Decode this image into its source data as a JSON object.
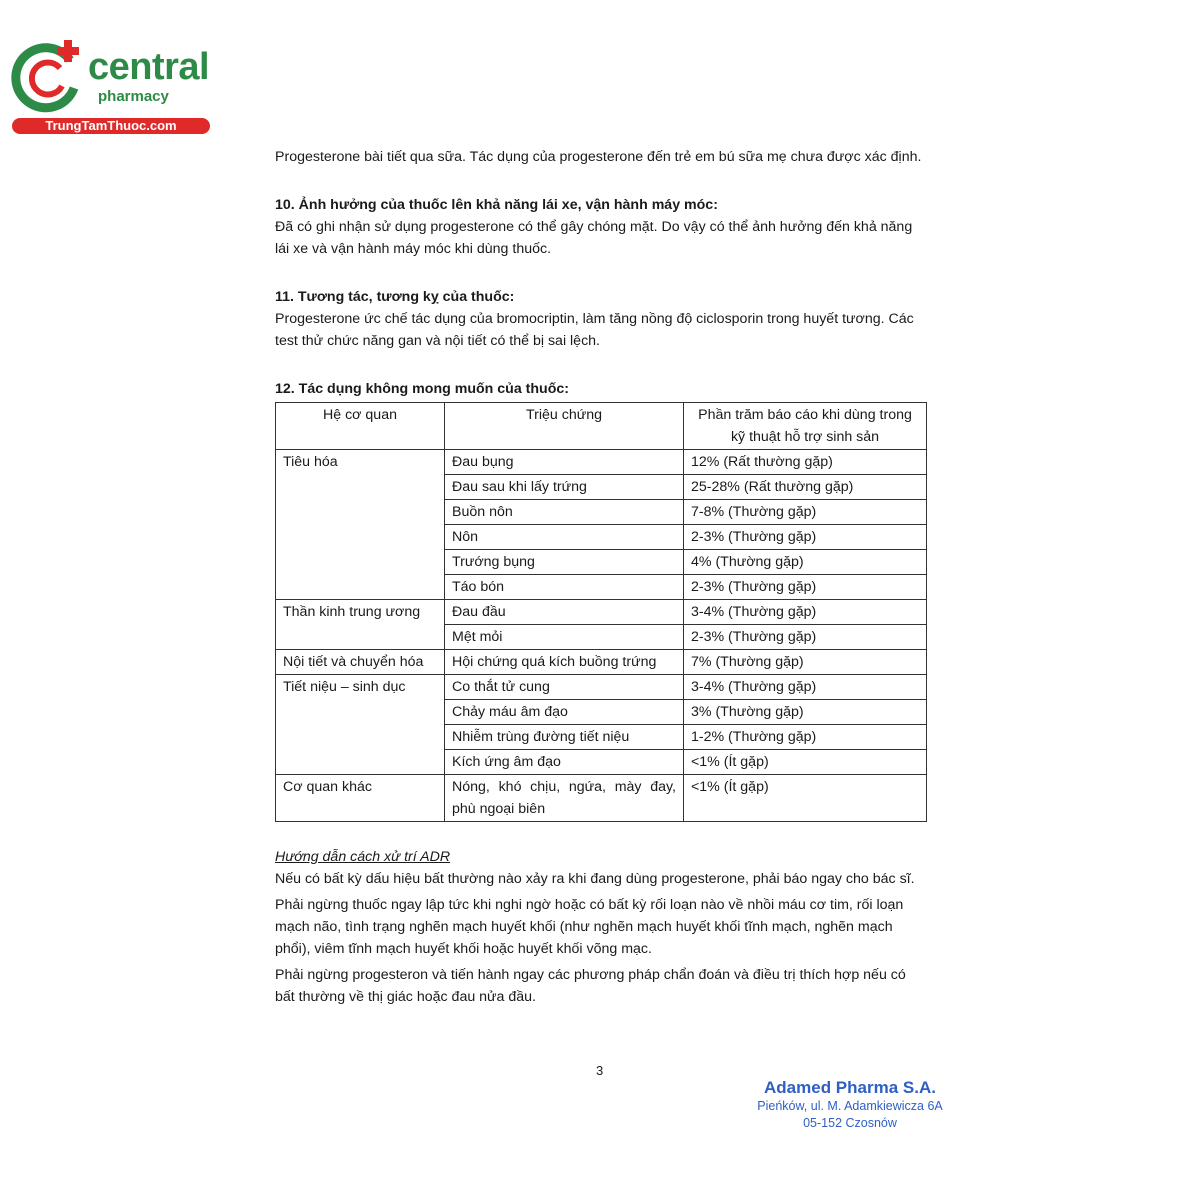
{
  "logo": {
    "brand": "central",
    "sub": "pharmacy",
    "site": "TrungTamThuoc.com",
    "colors": {
      "green": "#2e8b47",
      "red": "#e02a2a"
    }
  },
  "intro": "Progesterone bài tiết qua sữa. Tác dụng của progesterone đến trẻ em bú sữa mẹ chưa được xác định.",
  "s10": {
    "title": "10. Ảnh hưởng của thuốc lên khả năng lái xe, vận hành máy móc:",
    "body": "Đã có ghi nhận sử dụng progesterone có thể gây chóng mặt. Do vậy có thể ảnh hưởng đến khả năng lái xe và vận hành máy móc khi dùng thuốc."
  },
  "s11": {
    "title": "11. Tương tác, tương kỵ của thuốc:",
    "body": "Progesterone ức chế tác dụng của bromocriptin, làm tăng nồng độ ciclosporin trong huyết tương. Các test thử chức năng gan và nội tiết có thể bị sai lệch."
  },
  "s12": {
    "title": "12. Tác dụng không mong muốn của thuốc:",
    "headers": [
      "Hệ cơ quan",
      "Triệu chứng",
      "Phần trăm báo cáo khi dùng trong kỹ thuật hỗ trợ sinh sản"
    ],
    "groups": [
      {
        "organ": "Tiêu hóa",
        "rows": [
          [
            "Đau bụng",
            "12% (Rất thường gặp)"
          ],
          [
            "Đau sau khi lấy trứng",
            "25-28% (Rất thường gặp)"
          ],
          [
            "Buồn nôn",
            "7-8% (Thường gặp)"
          ],
          [
            "Nôn",
            "2-3% (Thường gặp)"
          ],
          [
            "Trướng bụng",
            "4% (Thường gặp)"
          ],
          [
            "Táo bón",
            "2-3% (Thường gặp)"
          ]
        ]
      },
      {
        "organ": "Thần kinh trung ương",
        "rows": [
          [
            "Đau đầu",
            "3-4% (Thường gặp)"
          ],
          [
            "Mệt mỏi",
            "2-3% (Thường gặp)"
          ]
        ]
      },
      {
        "organ": "Nội tiết và chuyển hóa",
        "rows": [
          [
            "Hội chứng quá kích buồng trứng",
            "7% (Thường gặp)"
          ]
        ]
      },
      {
        "organ": "Tiết niệu – sinh dục",
        "rows": [
          [
            "Co thắt tử cung",
            "3-4% (Thường gặp)"
          ],
          [
            "Chảy máu âm đạo",
            "3% (Thường gặp)"
          ],
          [
            "Nhiễm trùng đường tiết niệu",
            "1-2% (Thường gặp)"
          ],
          [
            "Kích ứng âm đạo",
            "<1% (Ít gặp)"
          ]
        ]
      },
      {
        "organ": "Cơ quan khác",
        "rows": [
          [
            "Nóng, khó chịu, ngứa, mày đay, phù ngoại biên",
            "<1% (Ít gặp)"
          ]
        ]
      }
    ]
  },
  "adr": {
    "title": "Hướng dẫn cách xử trí ADR",
    "paragraphs": [
      "Nếu có bất kỳ dấu hiệu bất thường nào xảy ra khi đang dùng progesterone, phải báo ngay cho bác sĩ.",
      "Phải ngừng thuốc ngay lập tức khi nghi ngờ hoặc có bất kỳ rối loạn nào về nhồi máu cơ tim, rối loạn mạch não, tình trạng nghẽn mạch huyết khối (như nghẽn mạch huyết khối tĩnh mạch, nghẽn mạch phổi), viêm tĩnh mạch huyết khối hoặc huyết khối võng mạc.",
      "Phải ngừng progesteron và tiến hành ngay các phương pháp chẩn đoán và điều trị thích hợp nếu có bất thường về thị giác hoặc đau nửa đầu."
    ]
  },
  "page_number": "3",
  "stamp": {
    "name": "Adamed Pharma S.A.",
    "address1": "Pieńków, ul. M. Adamkiewicza 6A",
    "address2": "05-152 Czosnów",
    "color": "#2f5fc4"
  }
}
